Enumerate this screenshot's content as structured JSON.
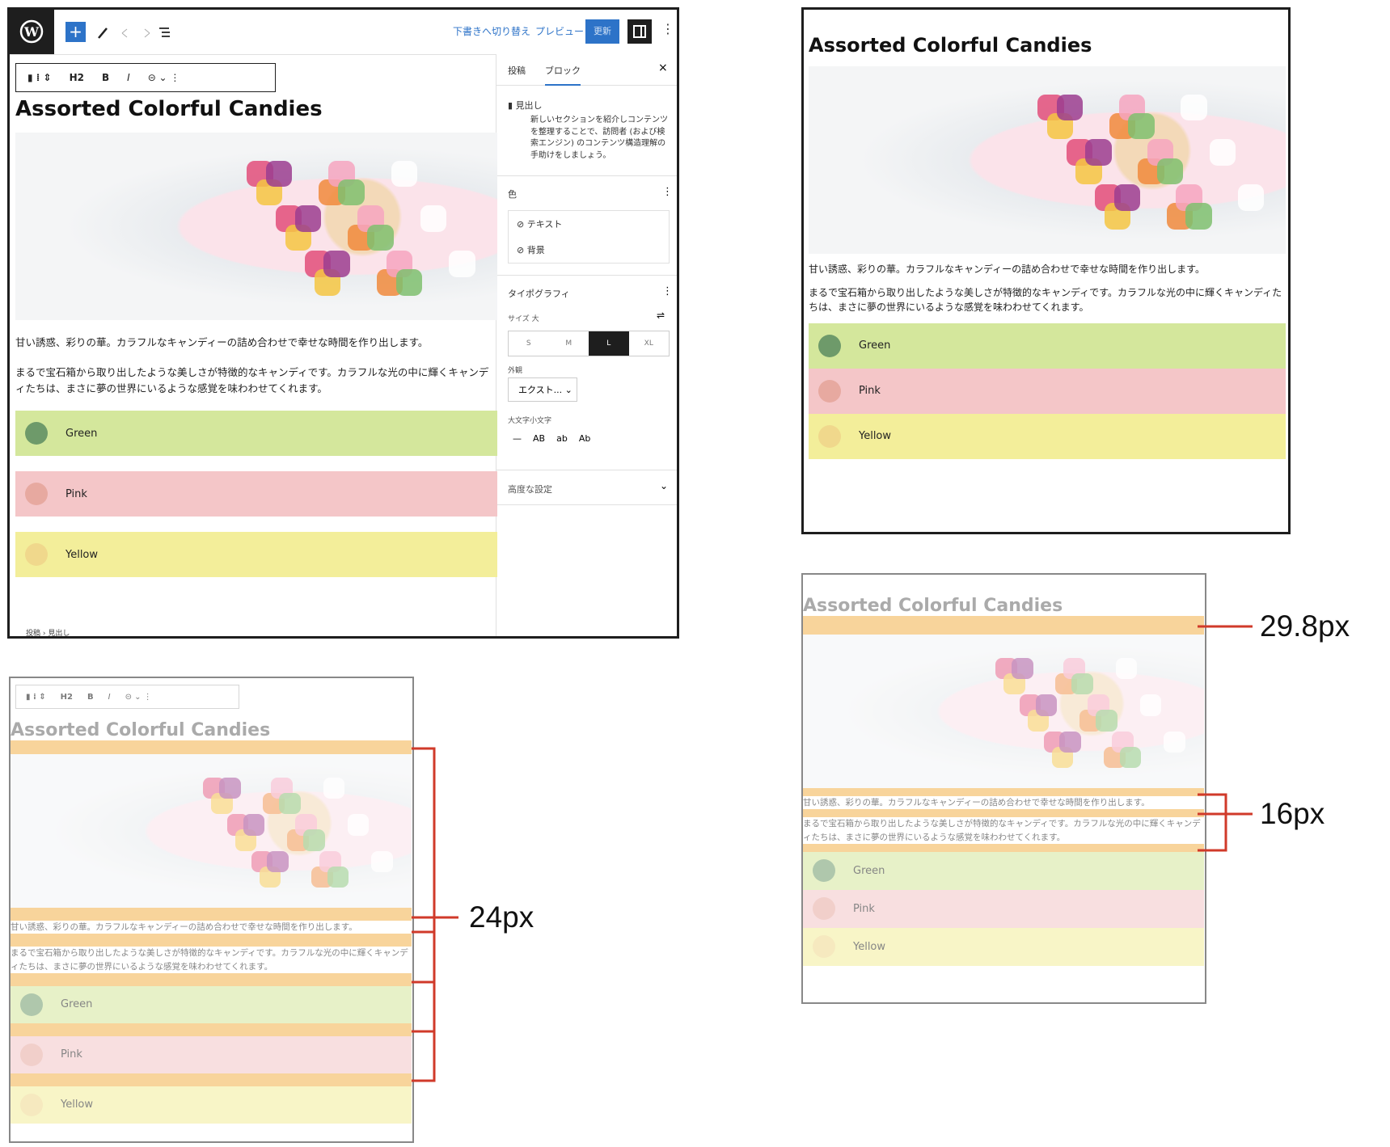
{
  "editor": {
    "top_bar": {
      "save_draft": "下書きへ切り替え",
      "preview": "プレビュー",
      "update": "更新"
    },
    "block_toolbar": {
      "heading_level": "H2",
      "bold": "B",
      "italic": "I"
    },
    "sidebar": {
      "tabs": [
        "投稿",
        "ブロック"
      ],
      "block_card": {
        "title": "見出し",
        "description": "新しいセクションを紹介しコンテンツを整理することで、訪問者 (および検索エンジン) のコンテンツ構造理解の手助けをしましょう。"
      },
      "color": {
        "label": "色",
        "items": [
          "テキスト",
          "背景"
        ]
      },
      "typography": {
        "label": "タイポグラフィ",
        "size_label": "サイズ 大",
        "sizes": [
          "S",
          "M",
          "L",
          "XL"
        ],
        "appearance_label": "外観",
        "appearance_value": "エクスト...",
        "letter_case_label": "大文字小文字",
        "letter_cases": [
          "—",
          "AB",
          "ab",
          "Ab"
        ]
      },
      "advanced": "高度な設定"
    },
    "breadcrumb": [
      "投稿",
      "見出し"
    ]
  },
  "content": {
    "title": "Assorted Colorful Candies",
    "paragraphs": [
      "甘い誘惑、彩りの華。カラフルなキャンディーの詰め合わせで幸せな時間を作り出します。",
      "まるで宝石箱から取り出したような美しさが特徴的なキャンディです。カラフルな光の中に輝くキャンディたちは、まさに夢の世界にいるような感覚を味わわせてくれます。"
    ],
    "items": [
      "Green",
      "Pink",
      "Yellow"
    ]
  },
  "annotations": {
    "block_gap": "24px",
    "heading_margin": "29.8px",
    "paragraph_margin": "16px"
  }
}
